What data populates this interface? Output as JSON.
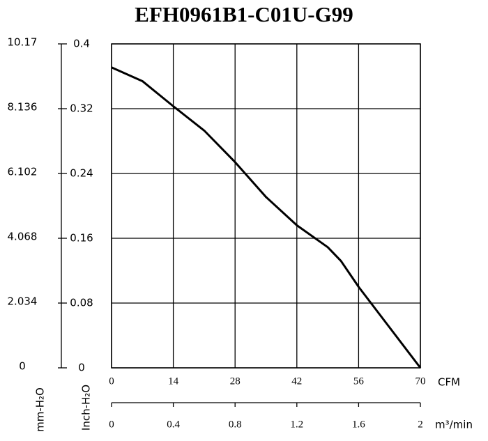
{
  "chart_data": {
    "type": "line",
    "title": "EFH0961B1-C01U-G99",
    "x": [
      0,
      7,
      14,
      21,
      28,
      35,
      42,
      49,
      52,
      56,
      63,
      70
    ],
    "values": [
      0.371,
      0.354,
      0.323,
      0.293,
      0.254,
      0.211,
      0.176,
      0.149,
      0.132,
      0.1,
      0.05,
      0
    ],
    "color": "#000000",
    "xlim": [
      0,
      70
    ],
    "xticks": [
      0,
      14,
      28,
      42,
      56,
      70
    ],
    "x_label": "CFM",
    "ylim": [
      0,
      0.4
    ],
    "yticks": [
      0,
      0.08,
      0.16,
      0.24,
      0.32,
      0.4
    ],
    "y_label": "Inch-H₂O",
    "y2lim": [
      0,
      10.17
    ],
    "y2ticks": [
      0,
      2.034,
      4.068,
      6.102,
      8.136,
      10.17
    ],
    "y2_label": "mm-H₂O",
    "x2lim": [
      0,
      2
    ],
    "x2ticks": [
      0,
      0.4,
      0.8,
      1.2,
      1.6,
      2
    ],
    "x2_label": "m³/min",
    "grid": true
  }
}
